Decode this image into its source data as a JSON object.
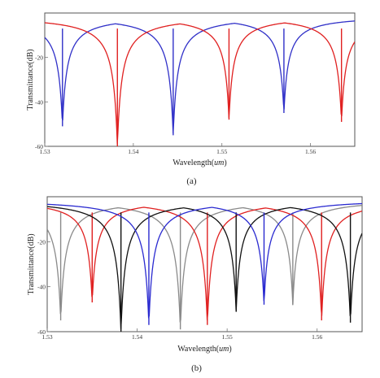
{
  "chart_data": [
    {
      "type": "line",
      "panel_label": "(a)",
      "xlabel": "Wavelength(um)",
      "xlabel_parts": [
        "Wavelength(",
        "um",
        ")"
      ],
      "ylabel": "Transmittance(dB)",
      "xlim": [
        1.53,
        1.565
      ],
      "ylim": [
        -60,
        0
      ],
      "xticks": [
        1.53,
        1.54,
        1.55,
        1.56
      ],
      "xtick_labels": [
        "1.53",
        "1.54",
        "1.55",
        "1.56"
      ],
      "yticks": [
        -20,
        -40,
        -60
      ],
      "ytick_labels": [
        "-20",
        "-40",
        "-60"
      ],
      "grid": false,
      "legend": "none",
      "series": [
        {
          "color": "#3030c8",
          "dips": [
            {
              "x": 1.532,
              "y": -51
            },
            {
              "x": 1.5445,
              "y": -55
            },
            {
              "x": 1.557,
              "y": -45
            }
          ]
        },
        {
          "color": "#e02020",
          "dips": [
            {
              "x": 1.5382,
              "y": -60
            },
            {
              "x": 1.5508,
              "y": -48
            },
            {
              "x": 1.5635,
              "y": -49
            }
          ]
        }
      ]
    },
    {
      "type": "line",
      "panel_label": "(b)",
      "xlabel": "Wavelength(um)",
      "xlabel_parts": [
        "Wavelength(",
        "um",
        ")"
      ],
      "ylabel": "Transmittance(dB)",
      "xlim": [
        1.53,
        1.565
      ],
      "ylim": [
        -60,
        0
      ],
      "xticks": [
        1.53,
        1.54,
        1.55,
        1.56
      ],
      "xtick_labels": [
        "1.53",
        "1.54",
        "1.55",
        "1.56"
      ],
      "yticks": [
        -20,
        -40,
        -60
      ],
      "ytick_labels": [
        "-20",
        "-40",
        "-60"
      ],
      "grid": false,
      "legend": "none",
      "series": [
        {
          "color": "#8a8a8a",
          "dips": [
            {
              "x": 1.5315,
              "y": -55
            },
            {
              "x": 1.5448,
              "y": -59
            },
            {
              "x": 1.5573,
              "y": -48
            }
          ]
        },
        {
          "color": "#e02020",
          "dips": [
            {
              "x": 1.535,
              "y": -47
            },
            {
              "x": 1.5478,
              "y": -57
            },
            {
              "x": 1.5605,
              "y": -55
            }
          ]
        },
        {
          "color": "#111111",
          "dips": [
            {
              "x": 1.5382,
              "y": -60
            },
            {
              "x": 1.551,
              "y": -51
            },
            {
              "x": 1.5637,
              "y": -56
            }
          ]
        },
        {
          "color": "#2a2ad0",
          "dips": [
            {
              "x": 1.5413,
              "y": -57
            },
            {
              "x": 1.5541,
              "y": -48
            }
          ]
        }
      ]
    }
  ]
}
